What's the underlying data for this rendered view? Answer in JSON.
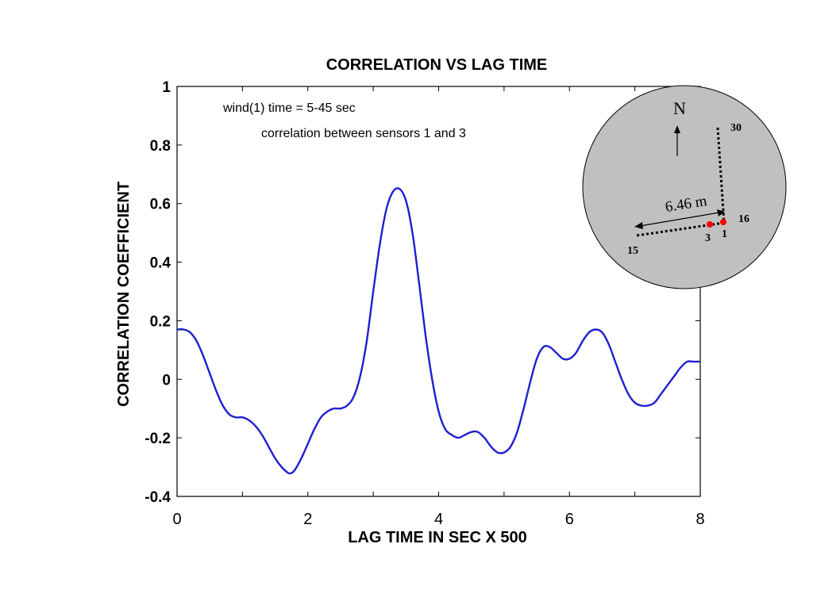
{
  "chart_data": {
    "type": "line",
    "title": "CORRELATION VS LAG TIME",
    "xlabel": "LAG TIME IN SEC X 500",
    "ylabel": "CORRELATION COEFFICIENT",
    "xlim": [
      0,
      8
    ],
    "ylim": [
      -0.4,
      1
    ],
    "xticks": [
      0,
      2,
      4,
      6,
      8
    ],
    "xtick_labels": [
      "0",
      "2",
      "4",
      "6",
      "8"
    ],
    "yticks": [
      -0.4,
      -0.2,
      0,
      0.2,
      0.4,
      0.6,
      0.8,
      1
    ],
    "ytick_labels": [
      "-0.4",
      "-0.2",
      "0",
      "0.2",
      "0.4",
      "0.6",
      "0.8",
      "1"
    ],
    "grid": false,
    "series": [
      {
        "color": "#1f1fd0",
        "x": [
          0,
          0.1,
          0.2,
          0.3,
          0.4,
          0.5,
          0.6,
          0.7,
          0.8,
          0.9,
          1.0,
          1.1,
          1.2,
          1.3,
          1.4,
          1.5,
          1.6,
          1.7,
          1.75,
          1.8,
          1.9,
          2.0,
          2.1,
          2.2,
          2.3,
          2.4,
          2.5,
          2.6,
          2.7,
          2.8,
          2.9,
          3.0,
          3.1,
          3.2,
          3.3,
          3.4,
          3.5,
          3.6,
          3.7,
          3.8,
          3.9,
          4.0,
          4.1,
          4.2,
          4.3,
          4.4,
          4.5,
          4.6,
          4.7,
          4.8,
          4.9,
          5.0,
          5.1,
          5.2,
          5.3,
          5.4,
          5.5,
          5.6,
          5.7,
          5.8,
          5.9,
          6.0,
          6.1,
          6.2,
          6.3,
          6.4,
          6.5,
          6.6,
          6.7,
          6.8,
          6.9,
          7.0,
          7.1,
          7.2,
          7.3,
          7.4,
          7.5,
          7.6,
          7.7,
          7.8,
          7.9,
          8.0
        ],
        "y": [
          0.17,
          0.17,
          0.16,
          0.13,
          0.08,
          0.02,
          -0.04,
          -0.09,
          -0.12,
          -0.13,
          -0.13,
          -0.14,
          -0.16,
          -0.19,
          -0.23,
          -0.27,
          -0.3,
          -0.32,
          -0.32,
          -0.31,
          -0.27,
          -0.22,
          -0.17,
          -0.13,
          -0.11,
          -0.1,
          -0.1,
          -0.09,
          -0.06,
          0.01,
          0.13,
          0.3,
          0.46,
          0.58,
          0.64,
          0.65,
          0.61,
          0.5,
          0.33,
          0.15,
          0.0,
          -0.11,
          -0.17,
          -0.19,
          -0.2,
          -0.19,
          -0.18,
          -0.18,
          -0.2,
          -0.23,
          -0.25,
          -0.25,
          -0.23,
          -0.18,
          -0.1,
          -0.01,
          0.07,
          0.11,
          0.11,
          0.09,
          0.07,
          0.07,
          0.09,
          0.13,
          0.16,
          0.17,
          0.16,
          0.12,
          0.06,
          0.0,
          -0.05,
          -0.08,
          -0.09,
          -0.09,
          -0.08,
          -0.05,
          -0.02,
          0.01,
          0.04,
          0.06,
          0.06,
          0.06
        ]
      }
    ],
    "annotations": {
      "line1": "wind(1) time = 5-45 sec",
      "line2": "correlation between sensors 1 and 3"
    }
  },
  "inset": {
    "north_label": "N",
    "distance_label": "6.46 m",
    "sensor_labels": [
      "30",
      "16",
      "15",
      "3",
      "1"
    ],
    "background_color": "#c0c0c0",
    "sensor_marker_color": "#ff0000"
  }
}
